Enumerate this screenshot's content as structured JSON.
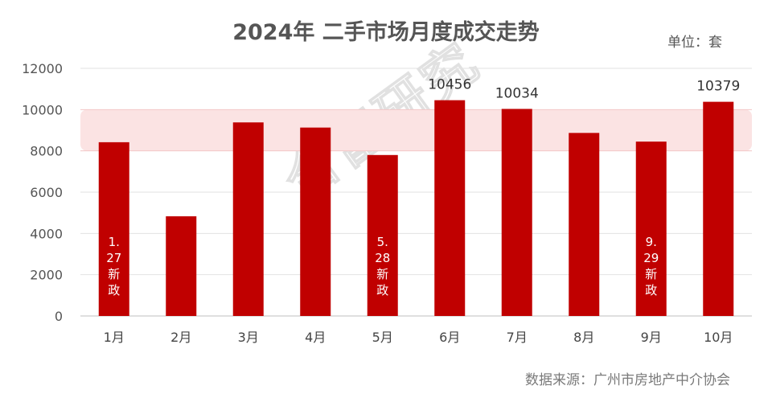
{
  "chart_data": {
    "type": "bar",
    "title": "2024年  二手市场月度成交走势",
    "unit_label": "单位：套",
    "source": "数据来源：广州市房地产中介协会",
    "watermark": "合富研究",
    "categories": [
      "1月",
      "2月",
      "3月",
      "4月",
      "5月",
      "6月",
      "7月",
      "8月",
      "9月",
      "10月"
    ],
    "values": [
      8420,
      4830,
      9380,
      9130,
      7800,
      10456,
      10034,
      8870,
      8450,
      10379
    ],
    "data_labels": {
      "5": "10456",
      "6": "10034",
      "9": "10379"
    },
    "ylim": [
      0,
      12000
    ],
    "yticks": [
      0,
      2000,
      4000,
      6000,
      8000,
      10000,
      12000
    ],
    "highlight_band": [
      8000,
      10000
    ],
    "grid": true,
    "colors": {
      "bar": "#c00000",
      "band": "#fbe3e3",
      "band_line": "#f3c6c6",
      "tick_10000": "#b01818",
      "tick_8000": "#f08d8d",
      "tick_default": "#555555"
    },
    "annotations": [
      {
        "index": 0,
        "lines": [
          "1.",
          "27",
          "新",
          "政"
        ]
      },
      {
        "index": 4,
        "lines": [
          "5.",
          "28",
          "新",
          "政"
        ]
      },
      {
        "index": 8,
        "lines": [
          "9.",
          "29",
          "新",
          "政"
        ]
      }
    ]
  }
}
